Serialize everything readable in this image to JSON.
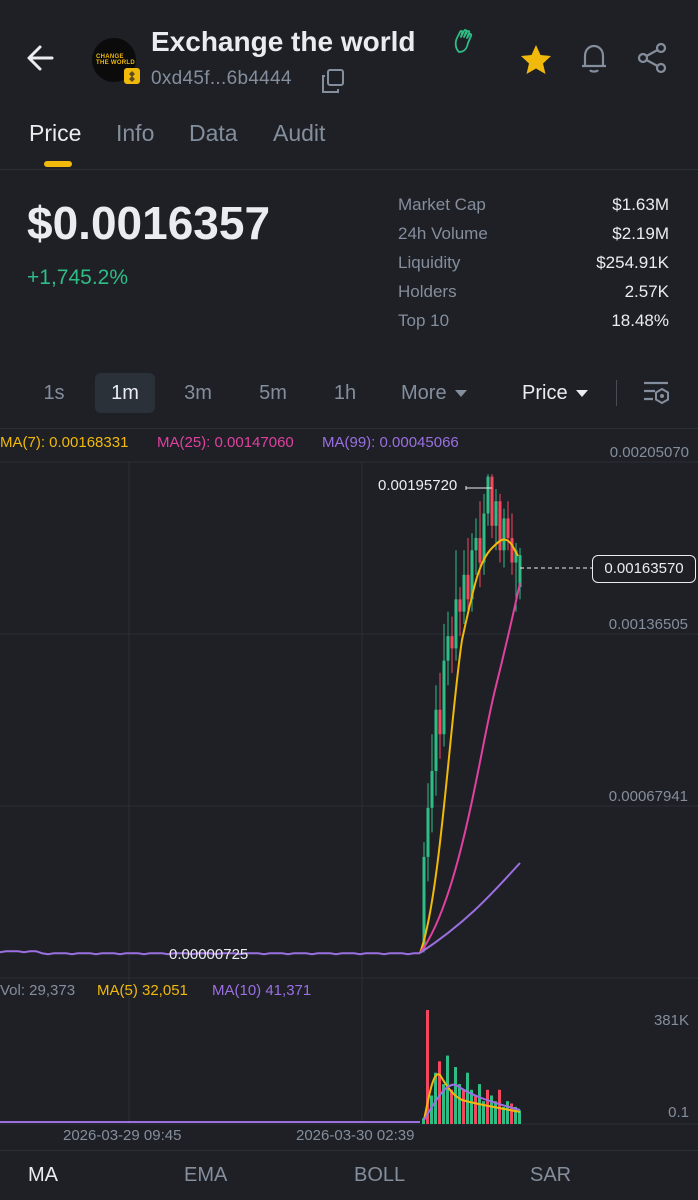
{
  "header": {
    "title": "Exchange the world",
    "address": "0xd45f...6b4444",
    "avatar_text": "CHANGE THE WORLD",
    "icons": [
      "back-arrow-icon",
      "copy-icon",
      "star-icon",
      "bell-icon",
      "share-icon",
      "waving-hand-icon"
    ],
    "favorite_color": "#f0b90b"
  },
  "tabs": [
    {
      "label": "Price",
      "active": true
    },
    {
      "label": "Info"
    },
    {
      "label": "Data"
    },
    {
      "label": "Audit"
    }
  ],
  "price": {
    "value": "$0.0016357",
    "change": "+1,745.2%",
    "change_color": "#2ebd85"
  },
  "stats": [
    {
      "label": "Market Cap",
      "value": "$1.63M"
    },
    {
      "label": "24h Volume",
      "value": "$2.19M"
    },
    {
      "label": "Liquidity",
      "value": "$254.91K"
    },
    {
      "label": "Holders",
      "value": "2.57K"
    },
    {
      "label": "Top 10",
      "value": "18.48%"
    }
  ],
  "intervals": [
    {
      "label": "1s"
    },
    {
      "label": "1m",
      "active": true
    },
    {
      "label": "3m"
    },
    {
      "label": "5m"
    },
    {
      "label": "1h"
    }
  ],
  "more_label": "More",
  "price_type_label": "Price",
  "ma_legend": {
    "ma7": "MA(7): 0.00168331",
    "ma25": "MA(25): 0.00147060",
    "ma99": "MA(99): 0.00045066"
  },
  "y_axis": [
    "0.00205070",
    "0.00136505",
    "0.00067941"
  ],
  "high_label": "0.00195720",
  "low_label": "0.00000725",
  "current_price_tag": "0.00163570",
  "volume_legend": {
    "vol": "Vol: 29,373",
    "ma5": "MA(5) 32,051",
    "ma10": "MA(10) 41,371"
  },
  "volume_axis": [
    "381K",
    "0.1"
  ],
  "x_axis": [
    "2026-03-29 09:45",
    "2026-03-30 02:39"
  ],
  "bottom_tabs": [
    {
      "label": "MA",
      "active": true
    },
    {
      "label": "EMA"
    },
    {
      "label": "BOLL"
    },
    {
      "label": "SAR"
    }
  ],
  "colors": {
    "up": "#2ebd85",
    "down": "#f6465d",
    "ma7": "#f0b90b",
    "ma25": "#e040a0",
    "ma99": "#9b6fe0"
  },
  "chart_data": {
    "type": "line",
    "price_range": [
      0.0,
      0.0020507
    ],
    "series": [
      {
        "name": "MA(7)",
        "latest": 0.00168331
      },
      {
        "name": "MA(25)",
        "latest": 0.0014706
      },
      {
        "name": "MA(99)",
        "latest": 0.00045066
      }
    ],
    "high": 0.0019572,
    "low": 7.25e-06,
    "current": 0.0016357,
    "volume_latest": 29373,
    "volume_max": "381K"
  }
}
